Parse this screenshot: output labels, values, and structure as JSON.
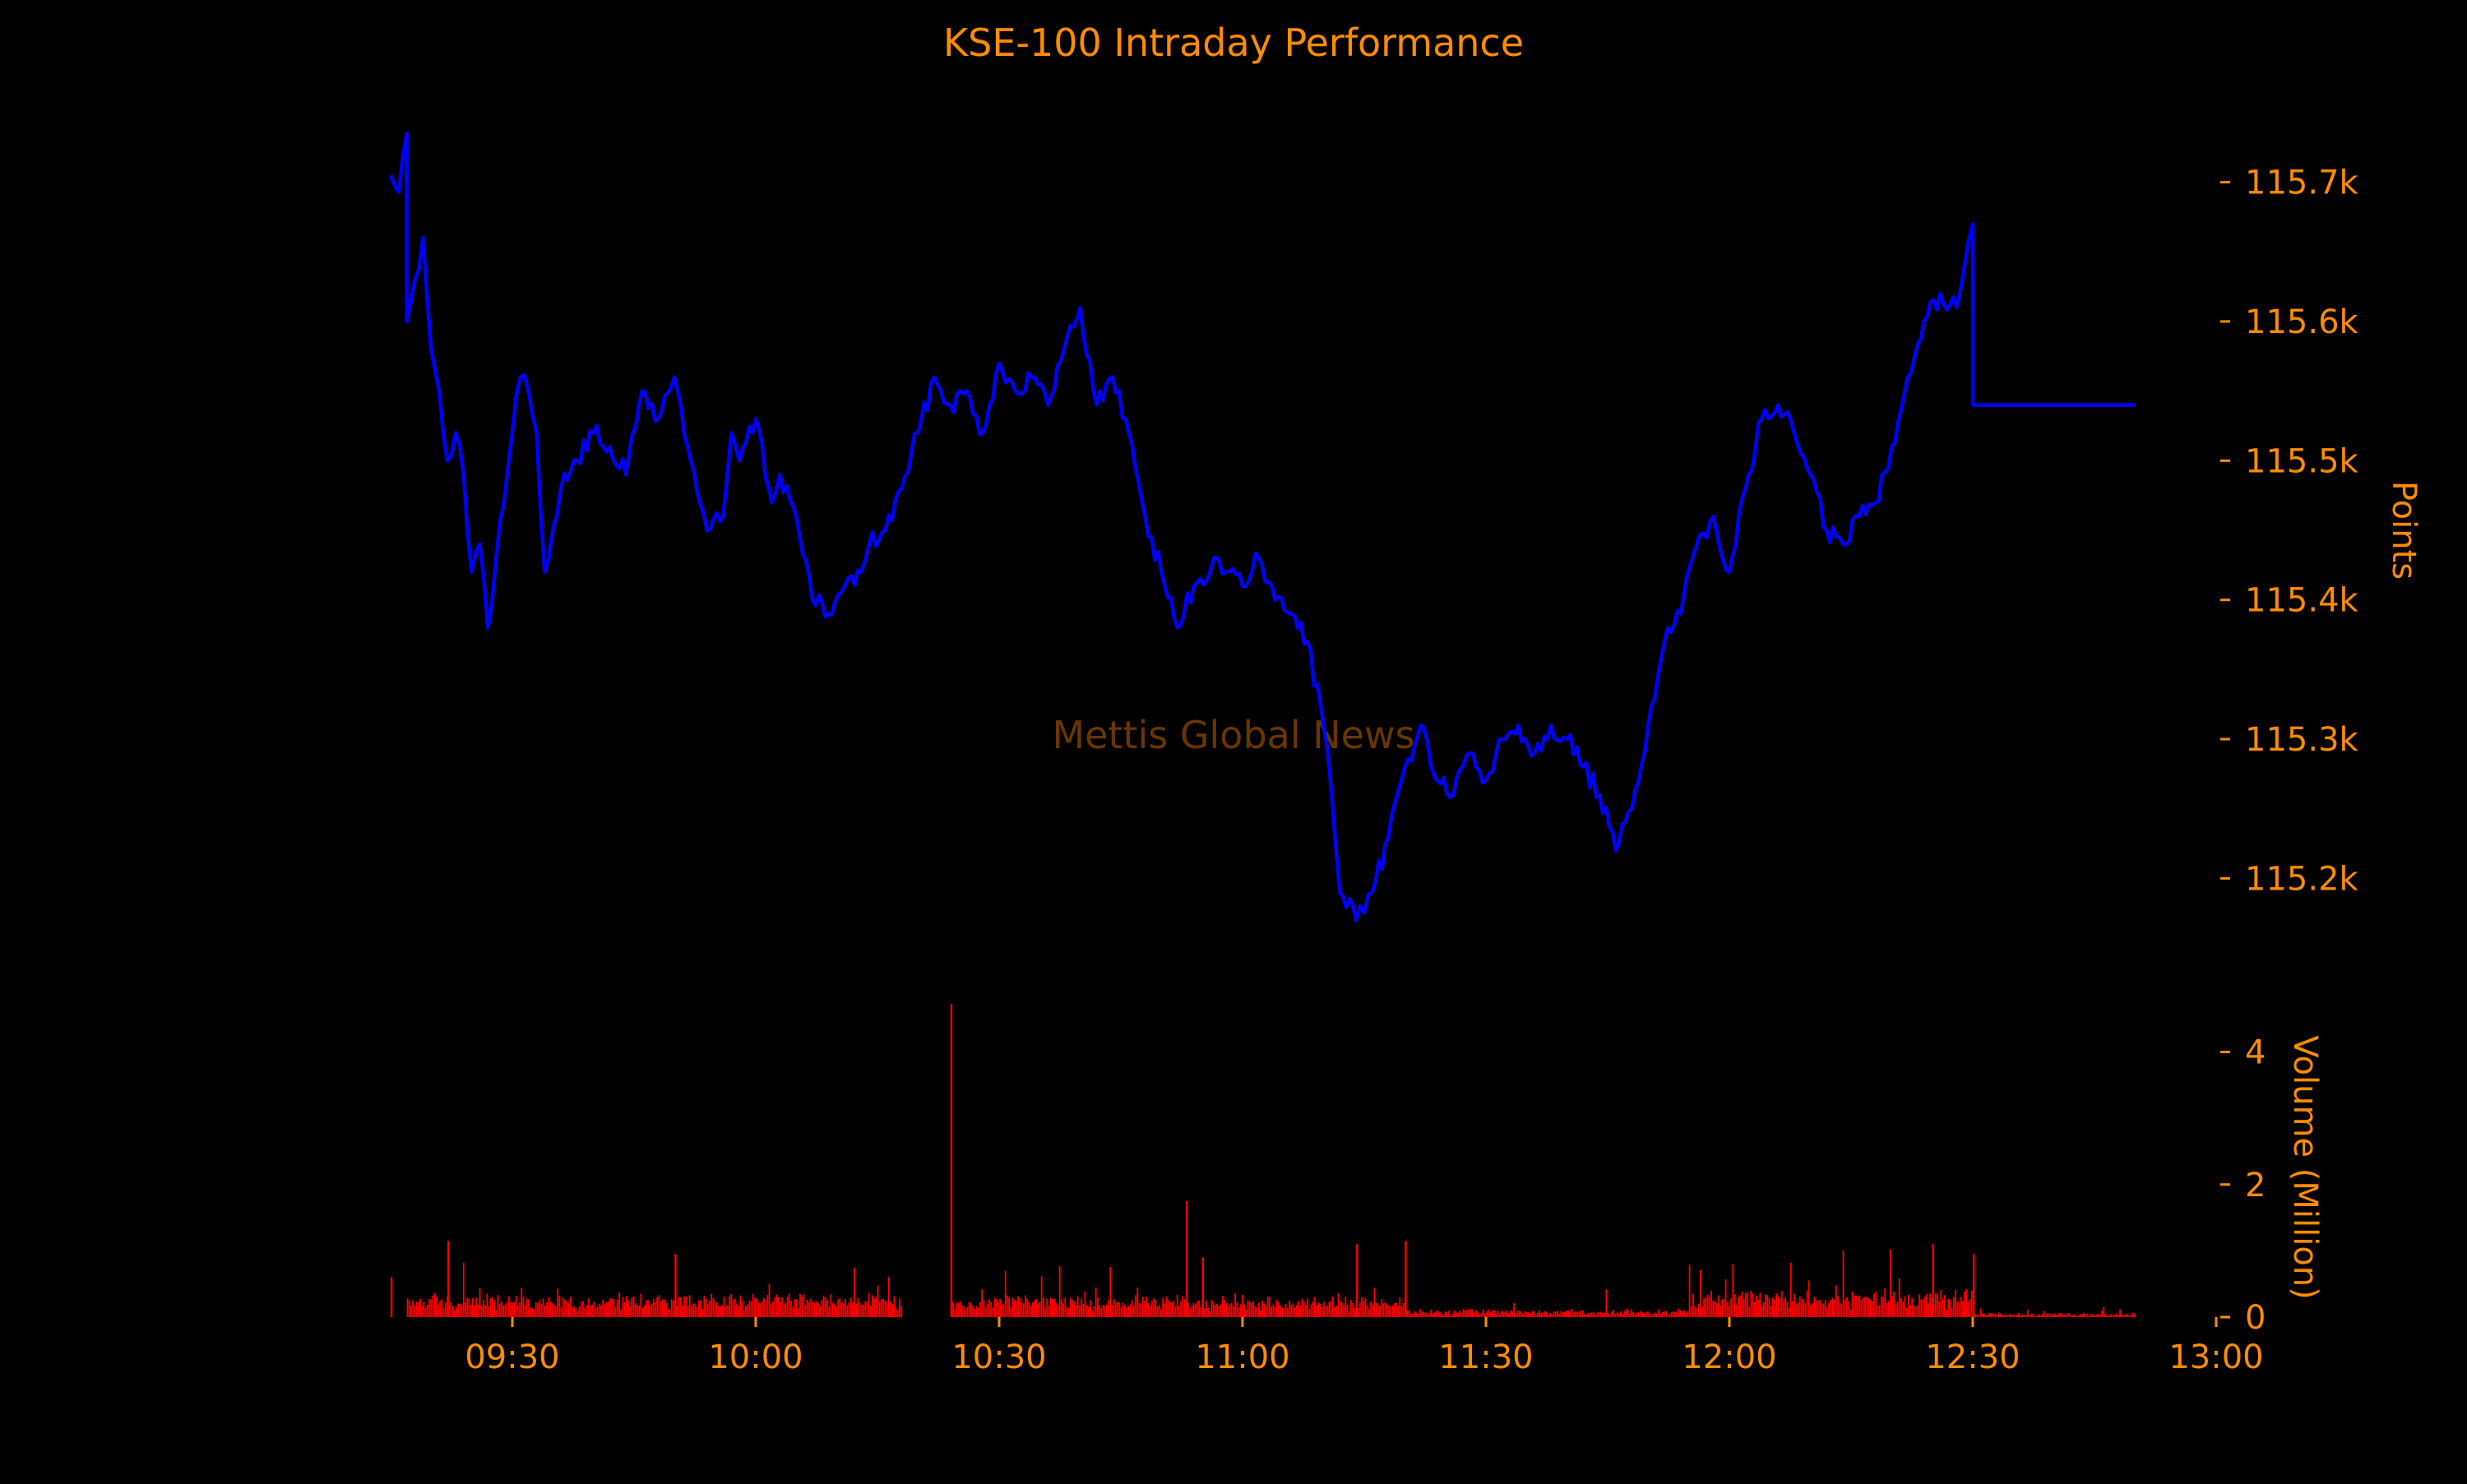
{
  "chart_data": [
    {
      "type": "line",
      "title": "KSE-100 Intraday Performance",
      "ylabel": "Points",
      "watermark": "Mettis Global News",
      "y_ticks": [
        "115.2k",
        "115.3k",
        "115.4k",
        "115.5k",
        "115.6k",
        "115.7k"
      ],
      "y_tick_values": [
        115200,
        115300,
        115400,
        115500,
        115600,
        115700
      ],
      "ylim": [
        115140,
        115760
      ],
      "xlim": [
        "09:15",
        "13:00"
      ],
      "y_axis_side": "right",
      "grid": false,
      "series": [
        {
          "color": "#0000ff",
          "x": [
            "09:15",
            "09:16",
            "09:17",
            "09:17",
            "09:18",
            "09:19",
            "09:20",
            "09:21",
            "09:22",
            "09:23",
            "09:24",
            "09:25",
            "09:26",
            "09:27",
            "09:28",
            "09:29",
            "09:30",
            "09:31",
            "09:32",
            "09:33",
            "09:34",
            "09:35",
            "09:36",
            "09:38",
            "09:40",
            "09:42",
            "09:44",
            "09:46",
            "09:48",
            "09:50",
            "09:52",
            "09:54",
            "09:56",
            "09:57",
            "09:58",
            "10:00",
            "10:02",
            "10:03",
            "10:05",
            "10:07",
            "10:09",
            "10:11",
            "10:13",
            "10:14",
            "10:16",
            "10:18",
            "10:20",
            "10:22",
            "10:24",
            "10:26",
            "10:28",
            "10:30",
            "10:32",
            "10:34",
            "10:36",
            "10:38",
            "10:40",
            "10:42",
            "10:44",
            "10:46",
            "10:48",
            "10:50",
            "10:52",
            "10:54",
            "10:56",
            "10:57",
            "10:58",
            "11:00",
            "11:02",
            "11:04",
            "11:06",
            "11:08",
            "11:10",
            "11:11",
            "11:12",
            "11:14",
            "11:15",
            "11:16",
            "11:18",
            "11:20",
            "11:22",
            "11:24",
            "11:26",
            "11:28",
            "11:30",
            "11:32",
            "11:34",
            "11:36",
            "11:38",
            "11:40",
            "11:42",
            "11:44",
            "11:46",
            "11:48",
            "11:50",
            "11:52",
            "11:54",
            "11:56",
            "11:58",
            "12:00",
            "12:02",
            "12:04",
            "12:06",
            "12:08",
            "12:10",
            "12:12",
            "12:14",
            "12:16",
            "12:18",
            "12:20",
            "12:22",
            "12:24",
            "12:26",
            "12:28",
            "12:29",
            "12:30",
            "12:30",
            "12:50"
          ],
          "y": [
            115705,
            115693,
            115735,
            115600,
            115630,
            115660,
            115580,
            115550,
            115500,
            115520,
            115490,
            115420,
            115440,
            115380,
            115430,
            115470,
            115520,
            115560,
            115550,
            115520,
            115420,
            115450,
            115480,
            115500,
            115520,
            115510,
            115490,
            115550,
            115530,
            115560,
            115500,
            115450,
            115460,
            115520,
            115500,
            115530,
            115470,
            115490,
            115460,
            115400,
            115390,
            115410,
            115420,
            115440,
            115450,
            115480,
            115520,
            115560,
            115540,
            115550,
            115520,
            115570,
            115550,
            115560,
            115540,
            115580,
            115610,
            115540,
            115560,
            115520,
            115460,
            115420,
            115380,
            115410,
            115420,
            115430,
            115420,
            115410,
            115430,
            115400,
            115390,
            115370,
            115310,
            115260,
            115190,
            115170,
            115175,
            115190,
            115230,
            115280,
            115310,
            115270,
            115260,
            115290,
            115270,
            115300,
            115310,
            115290,
            115310,
            115300,
            115280,
            115260,
            115220,
            115250,
            115310,
            115370,
            115390,
            115440,
            115460,
            115420,
            115480,
            115530,
            115540,
            115520,
            115490,
            115450,
            115440,
            115460,
            115470,
            115510,
            115560,
            115600,
            115620,
            115610,
            115640,
            115670,
            115540,
            115540
          ]
        }
      ]
    },
    {
      "type": "bar",
      "ylabel": "Volume (Million)",
      "y_ticks": [
        "0",
        "2",
        "4"
      ],
      "y_tick_values": [
        0,
        2,
        4
      ],
      "ylim": [
        0,
        4.8
      ],
      "x_ticks": [
        "09:30",
        "10:00",
        "10:30",
        "11:00",
        "11:30",
        "12:00",
        "12:30",
        "13:00"
      ],
      "xlim": [
        "09:15",
        "13:00"
      ],
      "color": "#ff0000",
      "segments": [
        {
          "start": "09:17",
          "end": "10:18",
          "base": 0.22,
          "spread": 0.22
        },
        {
          "start": "10:24",
          "end": "11:20",
          "base": 0.2,
          "spread": 0.22
        },
        {
          "start": "11:20",
          "end": "11:55",
          "base": 0.06,
          "spread": 0.12
        },
        {
          "start": "11:55",
          "end": "12:30",
          "base": 0.25,
          "spread": 0.3
        },
        {
          "start": "12:30",
          "end": "12:50",
          "base": 0.04,
          "spread": 0.04
        }
      ],
      "spikes": [
        {
          "time": "09:15",
          "value": 0.6
        },
        {
          "time": "09:22",
          "value": 1.15
        },
        {
          "time": "09:50",
          "value": 0.95
        },
        {
          "time": "10:24",
          "value": 4.72
        },
        {
          "time": "10:53",
          "value": 1.75
        },
        {
          "time": "10:55",
          "value": 0.9
        },
        {
          "time": "11:14",
          "value": 1.1
        },
        {
          "time": "11:20",
          "value": 1.15
        },
        {
          "time": "12:25",
          "value": 1.1
        },
        {
          "time": "12:30",
          "value": 0.95
        }
      ]
    }
  ]
}
